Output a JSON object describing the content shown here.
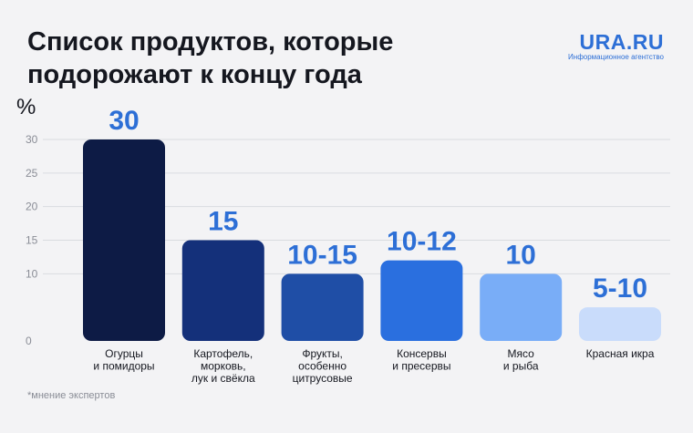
{
  "header": {
    "title_line1": "Список продуктов, которые",
    "title_line2": "подорожают к концу года"
  },
  "logo": {
    "name": "URA.RU",
    "tagline": "Информационное агентство"
  },
  "footnote": "*мнение экспертов",
  "colors": {
    "background": "#f3f3f5",
    "label_blue": "#2d6fd6",
    "grid": "#d9dbe0"
  },
  "chart_data": {
    "type": "bar",
    "title": "Список продуктов, которые подорожают к концу года",
    "ylabel": "%",
    "xlabel": "",
    "ylim": [
      0,
      30
    ],
    "yticks": [
      0,
      10,
      15,
      20,
      25,
      30
    ],
    "grid": true,
    "categories": [
      [
        "Огурцы",
        "и помидоры"
      ],
      [
        "Картофель,",
        "морковь,",
        "лук и свёкла"
      ],
      [
        "Фрукты,",
        "особенно",
        "цитрусовые"
      ],
      [
        "Консервы",
        "и пресервы"
      ],
      [
        "Мясо",
        "и рыба"
      ],
      [
        "Красная икра"
      ]
    ],
    "values": [
      30,
      15,
      10,
      12,
      10,
      5
    ],
    "value_labels": [
      "30",
      "15",
      "10-15",
      "10-12",
      "10",
      "5-10"
    ],
    "bar_colors": [
      "#0d1b45",
      "#14307a",
      "#1f4ea6",
      "#2a6fdf",
      "#79adf7",
      "#c9dcfb"
    ]
  }
}
